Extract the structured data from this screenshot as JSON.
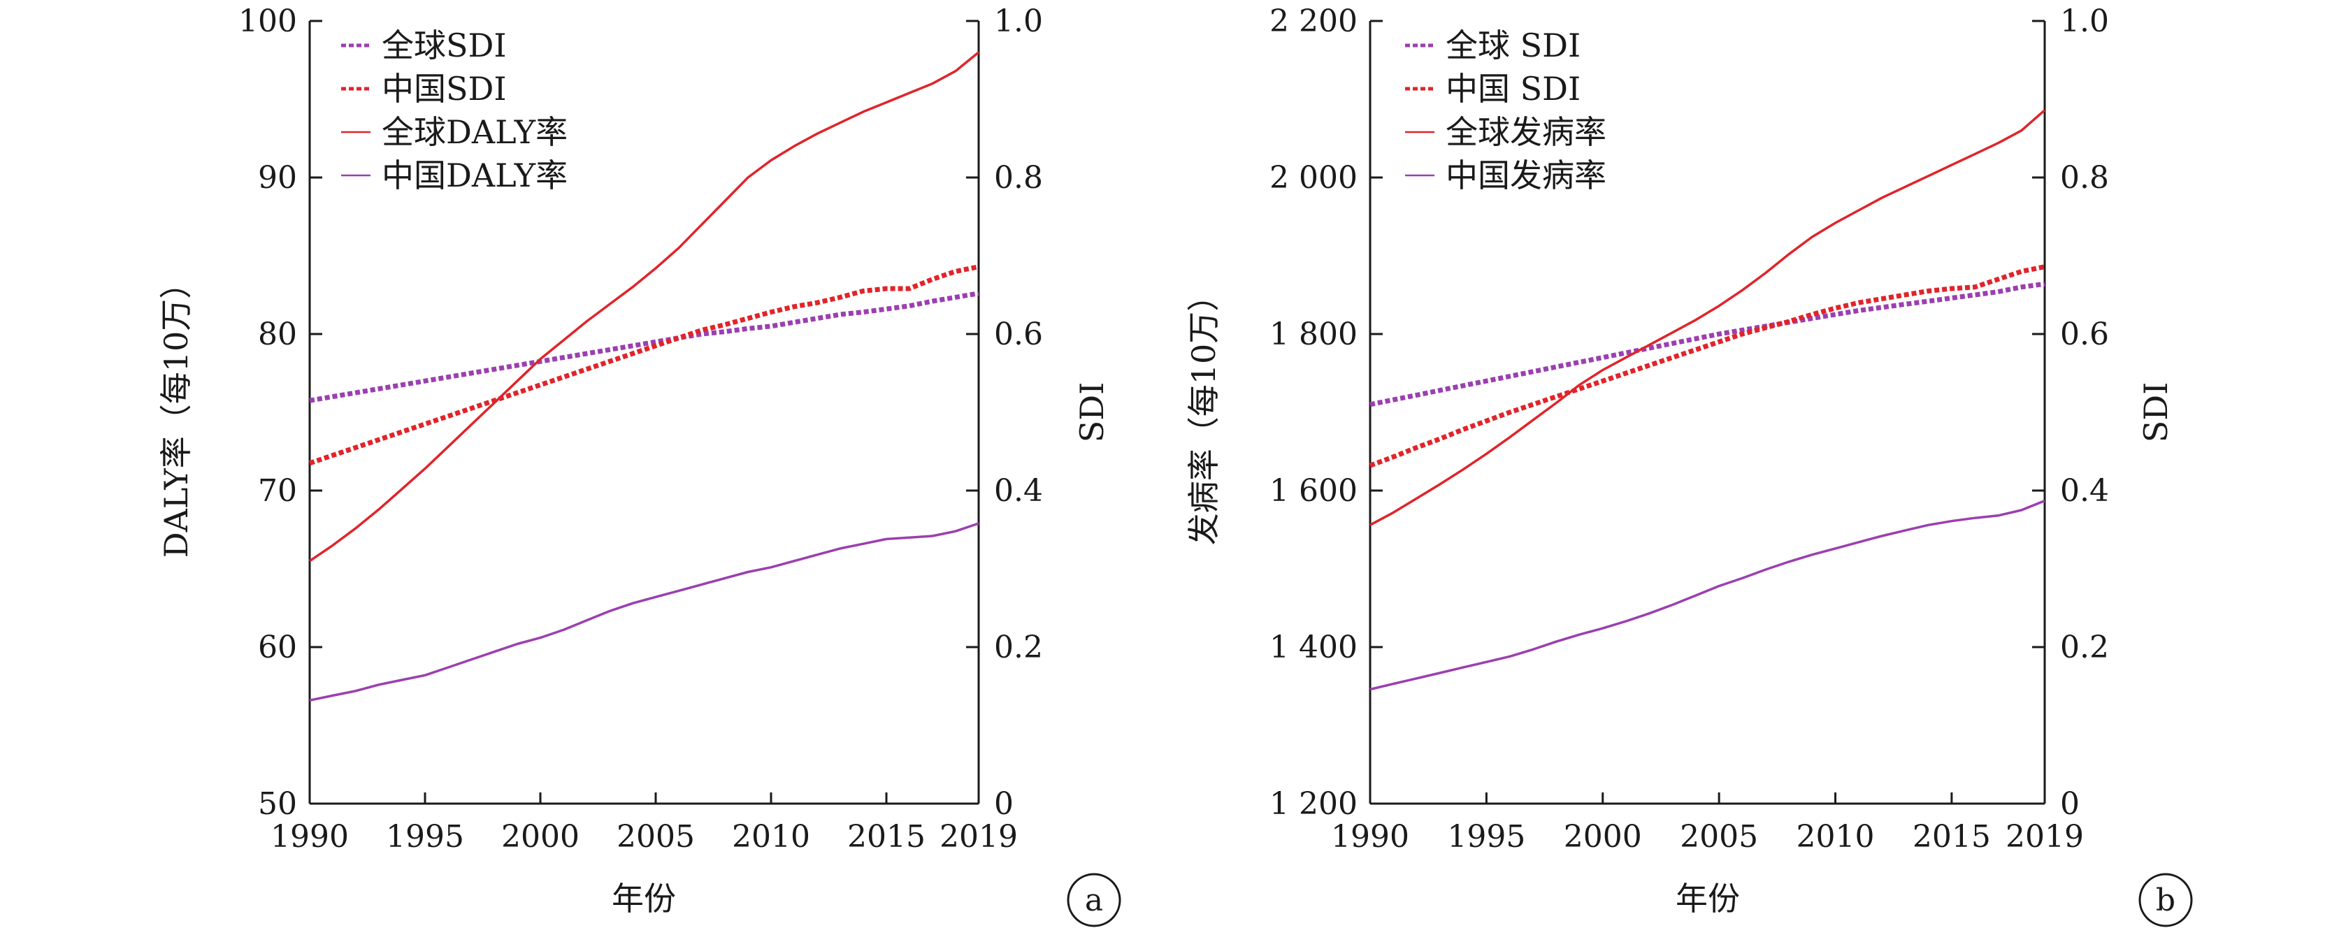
{
  "chart_data": [
    {
      "type": "line",
      "panel": "a",
      "xlabel": "年份",
      "ylabel": "DALY率（每10万）",
      "ylabel_right": "SDI",
      "x_ticks": [
        "1990",
        "1995",
        "2000",
        "2005",
        "2010",
        "2015",
        "2019"
      ],
      "xlim": [
        1990,
        2019
      ],
      "ylim": [
        50,
        100
      ],
      "y_ticks": [
        "50",
        "60",
        "70",
        "80",
        "90",
        "100"
      ],
      "y_tick_values": [
        50,
        60,
        70,
        80,
        90,
        100
      ],
      "ylim_right": [
        0,
        1.0
      ],
      "y_ticks_right": [
        "0",
        "0.2",
        "0.4",
        "0.6",
        "0.8",
        "1.0"
      ],
      "y_tick_values_right": [
        0,
        0.2,
        0.4,
        0.6,
        0.8,
        1.0
      ],
      "legend_position": "top-left",
      "x": [
        1990,
        1991,
        1992,
        1993,
        1994,
        1995,
        1996,
        1997,
        1998,
        1999,
        2000,
        2001,
        2002,
        2003,
        2004,
        2005,
        2006,
        2007,
        2008,
        2009,
        2010,
        2011,
        2012,
        2013,
        2014,
        2015,
        2016,
        2017,
        2018,
        2019
      ],
      "series": [
        {
          "name": "全球SDI",
          "axis": "right",
          "color": "#9b3fb0",
          "dash": true,
          "values": [
            0.515,
            0.52,
            0.525,
            0.53,
            0.535,
            0.54,
            0.545,
            0.55,
            0.555,
            0.56,
            0.565,
            0.57,
            0.575,
            0.58,
            0.585,
            0.59,
            0.595,
            0.6,
            0.603,
            0.607,
            0.61,
            0.615,
            0.62,
            0.625,
            0.628,
            0.632,
            0.636,
            0.642,
            0.647,
            0.652
          ]
        },
        {
          "name": "中国SDI",
          "axis": "right",
          "color": "#e0242a",
          "dash": true,
          "values": [
            0.435,
            0.445,
            0.455,
            0.465,
            0.475,
            0.485,
            0.495,
            0.505,
            0.515,
            0.525,
            0.535,
            0.545,
            0.555,
            0.565,
            0.575,
            0.585,
            0.595,
            0.605,
            0.612,
            0.62,
            0.628,
            0.635,
            0.64,
            0.647,
            0.655,
            0.658,
            0.658,
            0.67,
            0.68,
            0.686
          ]
        },
        {
          "name": "全球DALY率",
          "axis": "left",
          "color": "#e0242a",
          "dash": false,
          "values": [
            65.5,
            66.5,
            67.6,
            68.8,
            70.1,
            71.4,
            72.8,
            74.2,
            75.6,
            77.0,
            78.4,
            79.6,
            80.8,
            81.9,
            83.0,
            84.2,
            85.5,
            87.0,
            88.5,
            90.0,
            91.1,
            92.0,
            92.8,
            93.5,
            94.2,
            94.8,
            95.4,
            96.0,
            96.8,
            98.0
          ]
        },
        {
          "name": "中国DALY率",
          "axis": "left",
          "color": "#9b3fb0",
          "dash": false,
          "values": [
            56.6,
            56.9,
            57.2,
            57.6,
            57.9,
            58.2,
            58.7,
            59.2,
            59.7,
            60.2,
            60.6,
            61.1,
            61.7,
            62.3,
            62.8,
            63.2,
            63.6,
            64.0,
            64.4,
            64.8,
            65.1,
            65.5,
            65.9,
            66.3,
            66.6,
            66.9,
            67.0,
            67.1,
            67.4,
            67.9
          ]
        }
      ]
    },
    {
      "type": "line",
      "panel": "b",
      "xlabel": "年份",
      "ylabel": "发病率（每10万）",
      "ylabel_right": "SDI",
      "x_ticks": [
        "1990",
        "1995",
        "2000",
        "2005",
        "2010",
        "2015",
        "2019"
      ],
      "xlim": [
        1990,
        2019
      ],
      "ylim": [
        1200,
        2200
      ],
      "y_ticks": [
        "1 200",
        "1 400",
        "1 600",
        "1 800",
        "2 000",
        "2 200"
      ],
      "y_tick_values": [
        1200,
        1400,
        1600,
        1800,
        2000,
        2200
      ],
      "ylim_right": [
        0,
        1.0
      ],
      "y_ticks_right": [
        "0",
        "0.2",
        "0.4",
        "0.6",
        "0.8",
        "1.0"
      ],
      "y_tick_values_right": [
        0,
        0.2,
        0.4,
        0.6,
        0.8,
        1.0
      ],
      "legend_position": "top-left",
      "x": [
        1990,
        1991,
        1992,
        1993,
        1994,
        1995,
        1996,
        1997,
        1998,
        1999,
        2000,
        2001,
        2002,
        2003,
        2004,
        2005,
        2006,
        2007,
        2008,
        2009,
        2010,
        2011,
        2012,
        2013,
        2014,
        2015,
        2016,
        2017,
        2018,
        2019
      ],
      "series": [
        {
          "name": "全球 SDI",
          "axis": "right",
          "color": "#9b3fb0",
          "dash": true,
          "values": [
            0.51,
            0.516,
            0.522,
            0.528,
            0.534,
            0.54,
            0.546,
            0.552,
            0.558,
            0.564,
            0.57,
            0.576,
            0.582,
            0.588,
            0.594,
            0.6,
            0.605,
            0.61,
            0.615,
            0.62,
            0.625,
            0.63,
            0.634,
            0.638,
            0.642,
            0.646,
            0.65,
            0.654,
            0.66,
            0.664
          ]
        },
        {
          "name": "中国 SDI",
          "axis": "right",
          "color": "#e0242a",
          "dash": true,
          "values": [
            0.432,
            0.443,
            0.455,
            0.466,
            0.478,
            0.489,
            0.5,
            0.51,
            0.52,
            0.53,
            0.54,
            0.55,
            0.56,
            0.57,
            0.58,
            0.59,
            0.6,
            0.608,
            0.616,
            0.625,
            0.633,
            0.64,
            0.645,
            0.65,
            0.655,
            0.658,
            0.66,
            0.67,
            0.68,
            0.686
          ]
        },
        {
          "name": "全球发病率",
          "axis": "left",
          "color": "#e0242a",
          "dash": false,
          "values": [
            1556,
            1572,
            1590,
            1608,
            1627,
            1647,
            1668,
            1690,
            1712,
            1735,
            1754,
            1770,
            1786,
            1802,
            1818,
            1836,
            1856,
            1878,
            1902,
            1924,
            1942,
            1958,
            1974,
            1988,
            2002,
            2016,
            2030,
            2044,
            2060,
            2086
          ]
        },
        {
          "name": "中国发病率",
          "axis": "left",
          "color": "#9b3fb0",
          "dash": false,
          "values": [
            1346,
            1353,
            1360,
            1367,
            1374,
            1381,
            1388,
            1397,
            1407,
            1416,
            1424,
            1433,
            1443,
            1454,
            1466,
            1478,
            1488,
            1499,
            1509,
            1518,
            1526,
            1534,
            1542,
            1549,
            1556,
            1561,
            1565,
            1568,
            1575,
            1587
          ]
        }
      ]
    }
  ]
}
